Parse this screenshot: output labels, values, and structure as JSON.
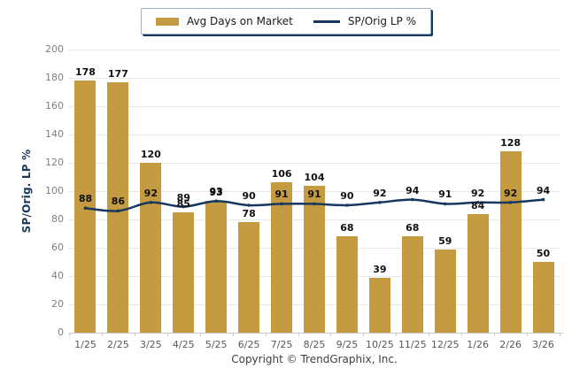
{
  "legend": {
    "bar_label": "Avg Days on Market",
    "line_label": "SP/Orig LP %"
  },
  "y_axis": {
    "title": "SP/Orig. LP %"
  },
  "footer": {
    "copyright": "Copyright © TrendGraphix, Inc."
  },
  "colors": {
    "bar": "#C59B41",
    "line": "#17375E",
    "grid": "#E8E8E8",
    "axis": "#C9C9C9",
    "y_tick_text": "#7F7F7F",
    "x_tick_text": "#595959",
    "value_text": "#111111"
  },
  "chart_data": {
    "type": "bar",
    "categories": [
      "1/25",
      "2/25",
      "3/25",
      "4/25",
      "5/25",
      "6/25",
      "7/25",
      "8/25",
      "9/25",
      "10/25",
      "11/25",
      "12/25",
      "1/26",
      "2/26",
      "3/26"
    ],
    "series": [
      {
        "name": "Avg Days on Market",
        "type": "bar",
        "values": [
          178,
          177,
          120,
          85,
          93,
          78,
          106,
          104,
          68,
          39,
          68,
          59,
          84,
          128,
          50
        ]
      },
      {
        "name": "SP/Orig LP %",
        "type": "line",
        "values": [
          88,
          86,
          92,
          89,
          93,
          90,
          91,
          91,
          90,
          92,
          94,
          91,
          92,
          92,
          94
        ]
      }
    ],
    "title": "",
    "xlabel": "",
    "ylabel": "SP/Orig. LP %",
    "ylim": [
      0,
      200
    ],
    "y_tick_step": 20,
    "grid": true,
    "legend_position": "top"
  }
}
